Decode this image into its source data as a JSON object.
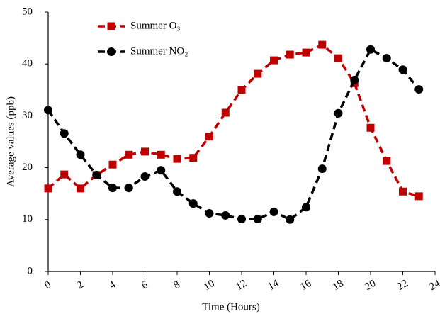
{
  "chart_data": {
    "type": "line",
    "x_label": "Time (Hours)",
    "y_label": "Average values (ppb)",
    "x": [
      0,
      1,
      2,
      3,
      4,
      5,
      6,
      7,
      8,
      9,
      10,
      11,
      12,
      13,
      14,
      15,
      16,
      17,
      18,
      19,
      20,
      21,
      22,
      23
    ],
    "series": [
      {
        "name": "Summer O₃",
        "color": "#c00000",
        "marker": "square",
        "values": [
          16.0,
          18.7,
          16.0,
          18.6,
          20.6,
          22.5,
          23.1,
          22.5,
          21.7,
          21.9,
          26.0,
          30.6,
          35.0,
          38.1,
          40.7,
          41.8,
          42.2,
          43.7,
          41.1,
          36.3,
          27.7,
          21.3,
          15.4,
          14.5
        ]
      },
      {
        "name": "Summer NO₂",
        "color": "#000000",
        "marker": "circle",
        "values": [
          31.1,
          26.6,
          22.5,
          18.6,
          16.1,
          16.1,
          18.3,
          19.5,
          15.4,
          13.1,
          11.2,
          10.8,
          10.1,
          10.1,
          11.5,
          10.0,
          12.4,
          19.8,
          30.5,
          36.9,
          42.8,
          41.1,
          38.9,
          35.1
        ]
      }
    ],
    "xlim": [
      0,
      24
    ],
    "xticks": [
      0,
      2,
      4,
      6,
      8,
      10,
      12,
      14,
      16,
      18,
      20,
      22,
      24
    ],
    "ylim": [
      0,
      50
    ],
    "yticks": [
      0,
      10,
      20,
      30,
      40,
      50
    ],
    "grid": false,
    "legend": "upper-left"
  }
}
